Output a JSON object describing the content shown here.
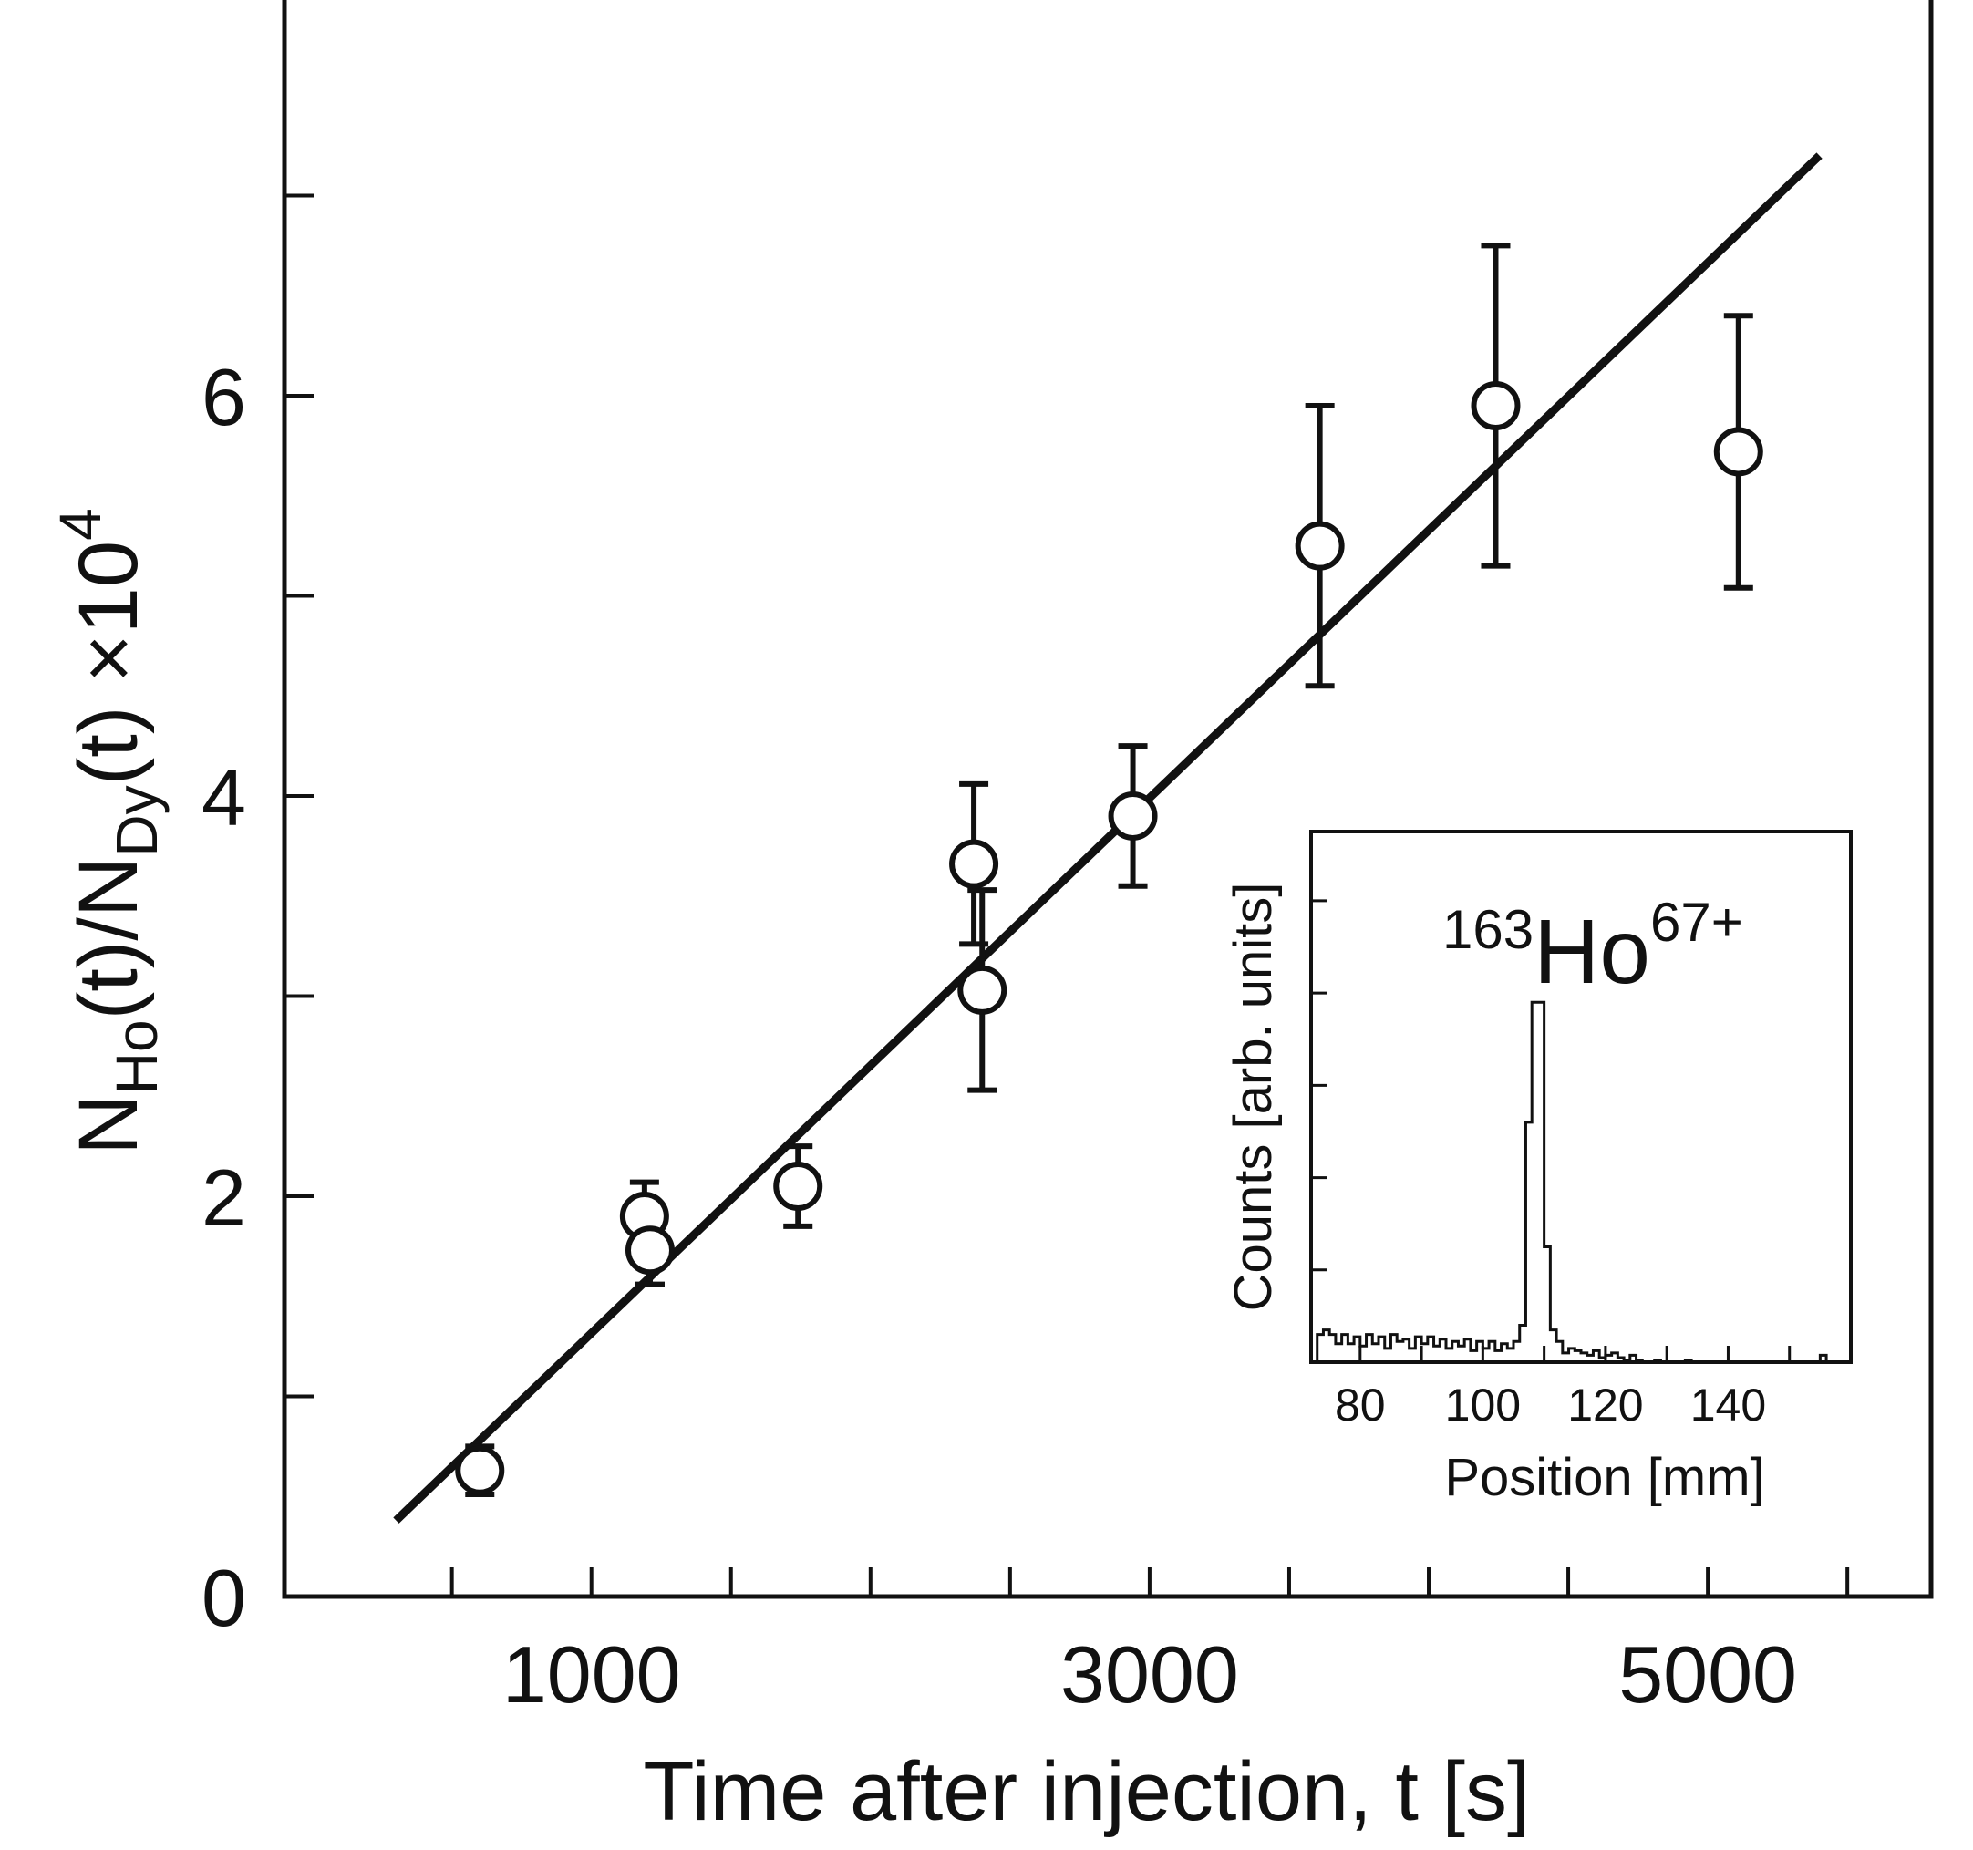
{
  "chart_data": [
    {
      "type": "scatter",
      "xlabel": "Time after injection, t [s]",
      "ylabel": {
        "text": "N",
        "sub1": "Ho",
        "mid": "(t)/N",
        "sub2": "Dy",
        "tail": "(t)  ×10",
        "sup": "4"
      },
      "xlim": [
        -100,
        5800
      ],
      "ylim": [
        0,
        8
      ],
      "x_major_ticks": [
        1000,
        3000,
        5000
      ],
      "x_tick_labels": [
        "1000",
        "3000",
        "5000"
      ],
      "x_minor_ticks": [
        500,
        1500,
        2000,
        2500,
        3500,
        4000,
        4500,
        5500
      ],
      "y_major_ticks": [
        0,
        2,
        4,
        6
      ],
      "y_tick_labels": [
        "0",
        "2",
        "4",
        "6"
      ],
      "y_minor_ticks": [
        1,
        3,
        5,
        7
      ],
      "grid": false,
      "series": [
        {
          "points": [
            {
              "x": 600,
              "y": 0.63,
              "err": 0.12
            },
            {
              "x": 1190,
              "y": 1.9,
              "err": 0.17
            },
            {
              "x": 1210,
              "y": 1.73,
              "err": 0.17
            },
            {
              "x": 1740,
              "y": 2.05,
              "err": 0.2
            },
            {
              "x": 2370,
              "y": 3.66,
              "err": 0.4
            },
            {
              "x": 2400,
              "y": 3.03,
              "err": 0.5
            },
            {
              "x": 2940,
              "y": 3.9,
              "err": 0.35
            },
            {
              "x": 3610,
              "y": 5.25,
              "err": 0.7
            },
            {
              "x": 4240,
              "y": 5.95,
              "err": 0.8
            },
            {
              "x": 5110,
              "y": 5.72,
              "err": 0.68
            }
          ]
        }
      ],
      "fit_line": {
        "x": [
          300,
          5400
        ],
        "y": [
          0.38,
          7.2
        ]
      }
    },
    {
      "type": "line",
      "title": {
        "pre": "163",
        "main": "Ho",
        "sup": "67+"
      },
      "xlabel": "Position [mm]",
      "ylabel": "Counts [arb. units]",
      "xlim": [
        72,
        160
      ],
      "ylim": [
        0,
        11.5
      ],
      "x_major_ticks": [
        80,
        100,
        120,
        140
      ],
      "x_tick_labels": [
        "80",
        "100",
        "120",
        "140"
      ],
      "x_minor_ticks": [
        90,
        110,
        130,
        150,
        160
      ],
      "y_ticks": [
        2,
        4,
        6,
        8,
        10
      ],
      "histogram": {
        "bin_width": 1,
        "x_start": 73,
        "counts": [
          0.6,
          0.7,
          0.6,
          0.4,
          0.6,
          0.4,
          0.55,
          0.35,
          0.6,
          0.4,
          0.55,
          0.3,
          0.6,
          0.45,
          0.5,
          0.3,
          0.55,
          0.4,
          0.55,
          0.35,
          0.5,
          0.3,
          0.45,
          0.35,
          0.5,
          0.25,
          0.45,
          0.3,
          0.45,
          0.25,
          0.4,
          0.3,
          0.45,
          0.8,
          5.2,
          7.8,
          7.8,
          2.5,
          0.7,
          0.45,
          0.2,
          0.3,
          0.25,
          0.2,
          0.15,
          0.25,
          0.1,
          0.15,
          0.2,
          0.1,
          0.05,
          0.15,
          0.05,
          0.0,
          0.0,
          0.05,
          0.0,
          0.0,
          0.0,
          0.0,
          0.05,
          0.0,
          0.0,
          0.0,
          0.0,
          0.0,
          0.0,
          0.0,
          0.0,
          0.0,
          0.0,
          0.0,
          0.0,
          0.0,
          0.0,
          0.0,
          0.0,
          0.0,
          0.0,
          0.0,
          0.0,
          0.0,
          0.15,
          0.0,
          0.0,
          0.0,
          0.0
        ]
      }
    }
  ]
}
